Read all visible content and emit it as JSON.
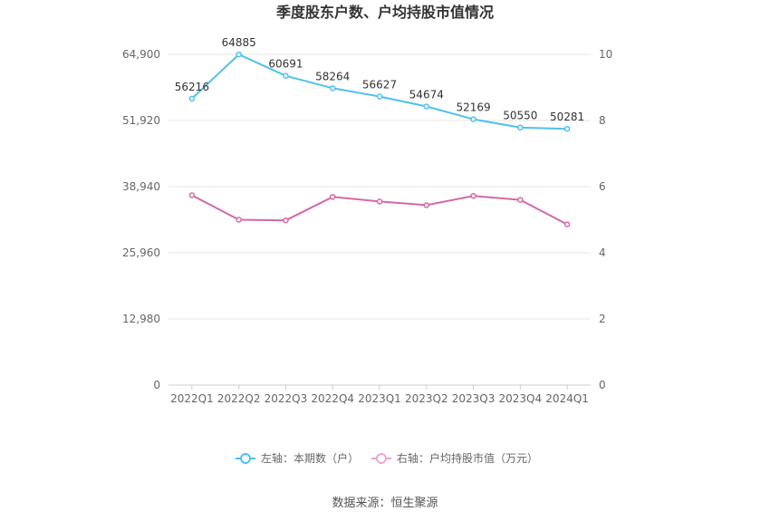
{
  "chart_data": {
    "type": "line",
    "title": "季度股东户数、户均持股市值情况",
    "categories": [
      "2022Q1",
      "2022Q2",
      "2022Q3",
      "2022Q4",
      "2023Q1",
      "2023Q2",
      "2023Q3",
      "2023Q4",
      "2024Q1"
    ],
    "left_axis": {
      "ticks": [
        "0",
        "12,980",
        "25,960",
        "38,940",
        "51,920",
        "64,900"
      ],
      "ylim": [
        0,
        64900
      ]
    },
    "right_axis": {
      "ticks": [
        "0",
        "2",
        "4",
        "6",
        "8",
        "10"
      ],
      "ylim": [
        0,
        10
      ]
    },
    "series": [
      {
        "name": "左轴：本期数（户）",
        "axis": "left",
        "color": "#4FC1EE",
        "values": [
          56216,
          64885,
          60691,
          58264,
          56627,
          54674,
          52169,
          50550,
          50281
        ],
        "labels": [
          "56216",
          "64885",
          "60691",
          "58264",
          "56627",
          "54674",
          "52169",
          "50550",
          "50281"
        ]
      },
      {
        "name": "右轴：户均持股市值（万元）",
        "axis": "right",
        "color": "#D468A8",
        "values": [
          5.74,
          5.0,
          4.98,
          5.69,
          5.55,
          5.44,
          5.72,
          5.6,
          4.86
        ]
      }
    ],
    "legend_position": "bottom",
    "grid": true
  },
  "footer": {
    "source": "数据来源：恒生聚源"
  }
}
